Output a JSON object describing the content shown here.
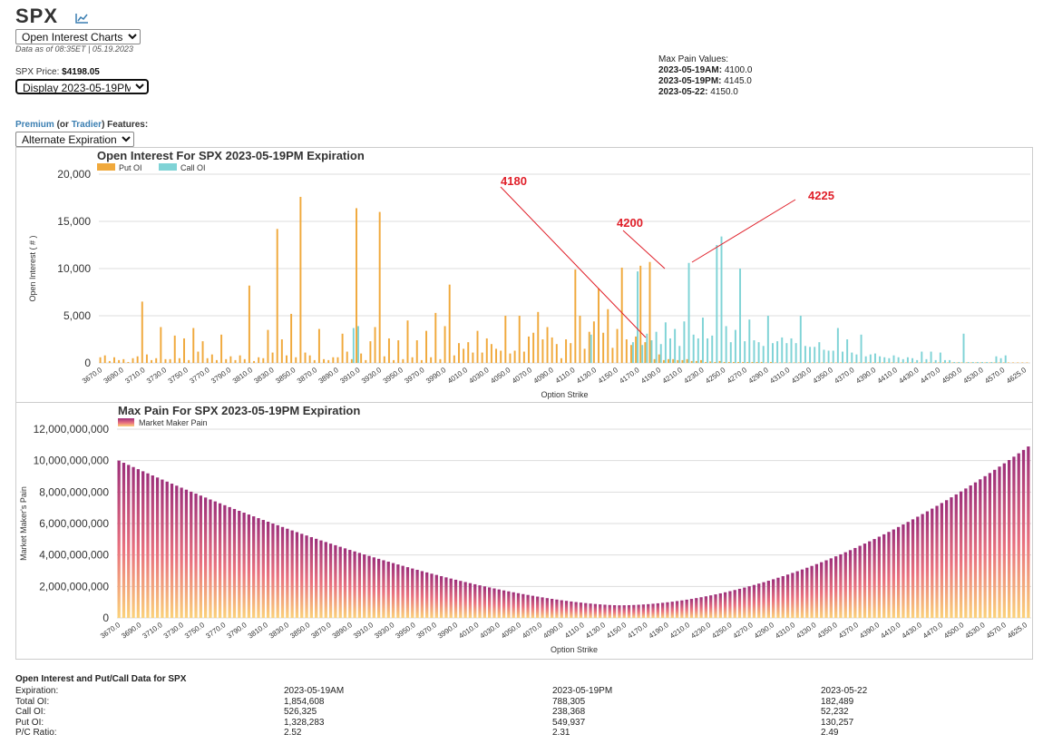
{
  "header": {
    "ticker": "SPX",
    "view_select": "Open Interest Charts",
    "data_as_of": "Data as of 08:35ET | 05.19.2023",
    "price_label": "SPX Price:",
    "price_value": "$4198.05",
    "display_select": "Display 2023-05-19PM",
    "features_premium": "Premium",
    "features_or": "(or",
    "features_tradier": "Tradier",
    "features_rest": ") Features:",
    "alt_select": "Alternate Expiration"
  },
  "max_pain_values": {
    "title": "Max Pain Values:",
    "items": [
      {
        "label": "2023-05-19AM:",
        "value": "4100.0"
      },
      {
        "label": "2023-05-19PM:",
        "value": "4145.0"
      },
      {
        "label": "2023-05-22:",
        "value": "4150.0"
      }
    ]
  },
  "colors": {
    "put": "#f0a93c",
    "call": "#7fd3d6",
    "pain_top": "#9d2f7a",
    "pain_mid": "#e8707e",
    "pain_bottom": "#fbd27a",
    "annotation": "#e0202a",
    "grid": "#dddddd"
  },
  "chart_data": [
    {
      "type": "bar",
      "title": "Open Interest For SPX 2023-05-19PM Expiration",
      "xlabel": "Option Strike",
      "ylabel": "Open Interest ( # )",
      "ylim": [
        0,
        20000
      ],
      "yticks": [
        "0",
        "5,000",
        "10,000",
        "15,000",
        "20,000"
      ],
      "ytick_values": [
        0,
        5000,
        10000,
        15000,
        20000
      ],
      "xtick_labels": [
        "3670.0",
        "3690.0",
        "3710.0",
        "3730.0",
        "3750.0",
        "3770.0",
        "3790.0",
        "3810.0",
        "3830.0",
        "3850.0",
        "3870.0",
        "3890.0",
        "3910.0",
        "3930.0",
        "3950.0",
        "3970.0",
        "3990.0",
        "4010.0",
        "4030.0",
        "4050.0",
        "4070.0",
        "4090.0",
        "4110.0",
        "4130.0",
        "4150.0",
        "4170.0",
        "4190.0",
        "4210.0",
        "4230.0",
        "4250.0",
        "4270.0",
        "4290.0",
        "4310.0",
        "4330.0",
        "4350.0",
        "4370.0",
        "4390.0",
        "4410.0",
        "4430.0",
        "4470.0",
        "4500.0",
        "4530.0",
        "4570.0",
        "4625.0"
      ],
      "legend": [
        {
          "name": "Put OI"
        },
        {
          "name": "Call OI"
        }
      ],
      "annotations": [
        {
          "text": "4180",
          "strike_index": 48
        },
        {
          "text": "4200",
          "strike_index": 55
        },
        {
          "text": "4225",
          "strike_index": 60
        }
      ],
      "series": [
        {
          "name": "Put OI",
          "values": [
            600,
            800,
            200,
            600,
            300,
            400,
            100,
            500,
            700,
            6500,
            900,
            300,
            500,
            3800,
            400,
            400,
            2900,
            500,
            2600,
            300,
            3700,
            1200,
            2300,
            500,
            900,
            300,
            3000,
            400,
            700,
            300,
            800,
            400,
            8200,
            200,
            600,
            500,
            3500,
            1100,
            14200,
            2500,
            800,
            5200,
            600,
            17600,
            1100,
            800,
            300,
            3600,
            400,
            300,
            600,
            600,
            3100,
            1200,
            400,
            16400,
            1000,
            300,
            2300,
            3800,
            16000,
            700,
            2600,
            300,
            2400,
            400,
            4500,
            600,
            2400,
            300,
            3400,
            600,
            5300,
            400,
            3900,
            8300,
            800,
            2100,
            1500,
            2200,
            1100,
            3400,
            1100,
            2600,
            2000,
            1500,
            1300,
            5000,
            1000,
            1300,
            5000,
            1200,
            2800,
            3200,
            5400,
            2500,
            3800,
            2700,
            2000,
            500,
            2500,
            2100,
            9900,
            5000,
            1500,
            3300,
            4400,
            7900,
            3200,
            5700,
            1600,
            3600,
            10100,
            2500,
            1900,
            2800,
            10300,
            2200,
            10700,
            400,
            900,
            300,
            400,
            400,
            300,
            300,
            400,
            200,
            200,
            300,
            100,
            150,
            100,
            200,
            100,
            100,
            100,
            100,
            100,
            100,
            100,
            100,
            100,
            50,
            100,
            50,
            50,
            50,
            50,
            50,
            50,
            50,
            50,
            50,
            50,
            50,
            50,
            50,
            50,
            50,
            50,
            50,
            50,
            50,
            50,
            50,
            50,
            50,
            50,
            50,
            50,
            50,
            50,
            50,
            50,
            50,
            50,
            50,
            50,
            50,
            50,
            50,
            50,
            50,
            50,
            50,
            50,
            50,
            50,
            50,
            50,
            50,
            50,
            50,
            50,
            50,
            50,
            50,
            50,
            50
          ]
        },
        {
          "name": "Call OI",
          "values": [
            0,
            0,
            0,
            0,
            0,
            0,
            0,
            0,
            0,
            0,
            0,
            0,
            0,
            0,
            0,
            0,
            0,
            0,
            0,
            0,
            0,
            0,
            0,
            0,
            0,
            0,
            0,
            0,
            0,
            0,
            0,
            0,
            0,
            0,
            0,
            0,
            0,
            0,
            0,
            0,
            0,
            0,
            0,
            0,
            0,
            0,
            0,
            0,
            0,
            0,
            0,
            0,
            0,
            0,
            3700,
            3900,
            0,
            0,
            0,
            0,
            0,
            0,
            0,
            0,
            0,
            0,
            0,
            0,
            0,
            0,
            0,
            0,
            0,
            0,
            0,
            0,
            0,
            0,
            0,
            0,
            0,
            0,
            0,
            0,
            0,
            0,
            0,
            0,
            0,
            0,
            0,
            0,
            0,
            0,
            0,
            0,
            0,
            0,
            0,
            0,
            0,
            0,
            0,
            0,
            0,
            3000,
            0,
            0,
            0,
            0,
            0,
            0,
            0,
            0,
            2200,
            9700,
            1900,
            3100,
            2400,
            3300,
            2000,
            4300,
            2600,
            3600,
            1800,
            4400,
            10600,
            3000,
            2600,
            4800,
            2600,
            2900,
            12500,
            13400,
            3900,
            2200,
            3500,
            10000,
            2300,
            4600,
            2400,
            2200,
            1800,
            5000,
            2100,
            2300,
            2700,
            2100,
            2600,
            2100,
            5000,
            1800,
            1700,
            1700,
            2200,
            1400,
            1300,
            1300,
            3700,
            1200,
            2500,
            1100,
            900,
            3000,
            700,
            900,
            1000,
            700,
            600,
            500,
            800,
            600,
            400,
            600,
            500,
            300,
            1200,
            400,
            1200,
            300,
            1100,
            300,
            300,
            100,
            100,
            3100,
            100,
            100,
            100,
            100,
            100,
            100,
            700,
            500,
            800
          ]
        }
      ]
    },
    {
      "type": "bar",
      "title": "Max Pain For SPX 2023-05-19PM Expiration",
      "xlabel": "Option Strike",
      "ylabel": "Market Maker's Pain",
      "ylim": [
        0,
        12000000000
      ],
      "yticks": [
        "0",
        "2,000,000,000",
        "4,000,000,000",
        "6,000,000,000",
        "8,000,000,000",
        "10,000,000,000",
        "12,000,000,000"
      ],
      "ytick_values": [
        0,
        2000000000,
        4000000000,
        6000000000,
        8000000000,
        10000000000,
        12000000000
      ],
      "xtick_labels": [
        "3670.0",
        "3690.0",
        "3710.0",
        "3730.0",
        "3750.0",
        "3770.0",
        "3790.0",
        "3810.0",
        "3830.0",
        "3850.0",
        "3870.0",
        "3890.0",
        "3910.0",
        "3930.0",
        "3950.0",
        "3970.0",
        "3990.0",
        "4010.0",
        "4030.0",
        "4050.0",
        "4070.0",
        "4090.0",
        "4110.0",
        "4130.0",
        "4150.0",
        "4170.0",
        "4190.0",
        "4210.0",
        "4230.0",
        "4250.0",
        "4270.0",
        "4290.0",
        "4310.0",
        "4330.0",
        "4350.0",
        "4370.0",
        "4390.0",
        "4410.0",
        "4430.0",
        "4470.0",
        "4500.0",
        "4530.0",
        "4570.0",
        "4625.0"
      ],
      "legend": [
        {
          "name": "Market Maker Pain"
        }
      ],
      "series": [
        {
          "name": "Market Maker Pain",
          "min_value": 800000000,
          "min_strike": "4145.0",
          "left_value": 10000000000,
          "right_value": 10900000000
        }
      ]
    }
  ],
  "table": {
    "title": "Open Interest and Put/Call Data for SPX",
    "rows": [
      [
        "Expiration:",
        "2023-05-19AM",
        "2023-05-19PM",
        "2023-05-22"
      ],
      [
        "Total OI:",
        "1,854,608",
        "788,305",
        "182,489"
      ],
      [
        "Call OI:",
        "526,325",
        "238,368",
        "52,232"
      ],
      [
        "Put OI:",
        "1,328,283",
        "549,937",
        "130,257"
      ],
      [
        "P/C Ratio:",
        "2.52",
        "2.31",
        "2.49"
      ]
    ]
  }
}
